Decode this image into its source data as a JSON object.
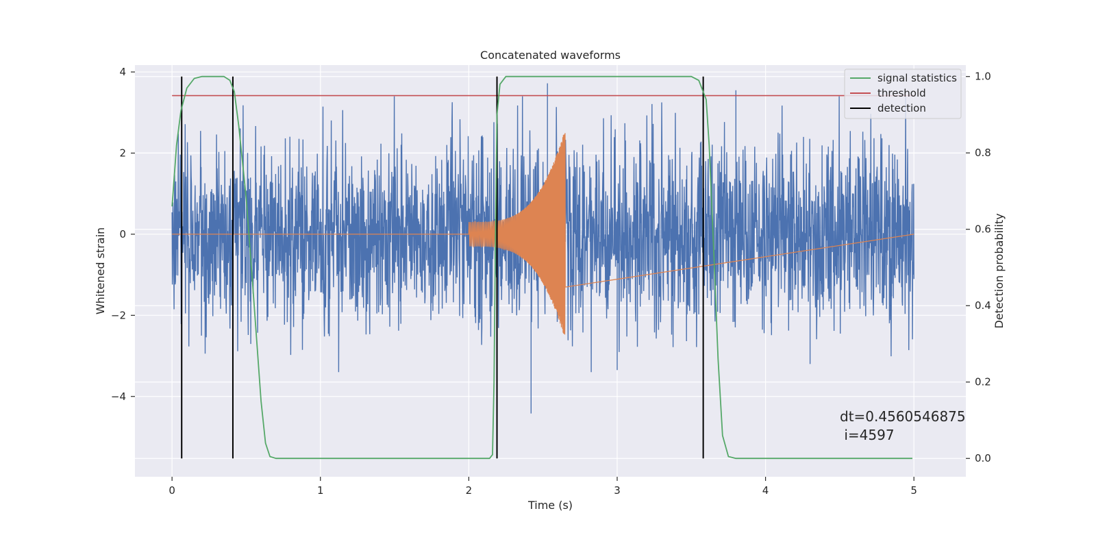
{
  "chart_data": {
    "type": "line",
    "title": "Concatenated waveforms",
    "xlabel": "Time (s)",
    "ylabel": "Whitened strain",
    "ylabel_right": "Detection probability",
    "xlim": [
      -0.25,
      5.35
    ],
    "ylim": [
      -5.98,
      4.17
    ],
    "ylim_right": [
      -0.048,
      1.03
    ],
    "xticks": [
      0,
      1,
      2,
      3,
      4,
      5
    ],
    "yticks": [
      4,
      2,
      0,
      -2,
      -4
    ],
    "ytick_labels": [
      "4",
      "2",
      "0",
      "−2",
      "−4"
    ],
    "yticks_right": [
      1.0,
      0.8,
      0.6,
      0.4,
      0.2,
      0.0
    ],
    "ytick_labels_right": [
      "1.0",
      "0.8",
      "0.6",
      "0.4",
      "0.2",
      "0.0"
    ],
    "grid": true,
    "legend_position": "top-right",
    "colors": {
      "background": "#eaeaf2",
      "grid": "#ffffff",
      "strain": "#4c72b0",
      "injection": "#dd8452",
      "signal_statistics": "#55a868",
      "threshold": "#c44e52",
      "detection": "#000000"
    },
    "series": [
      {
        "name": "",
        "axis": "left",
        "description_color": "strain",
        "x_range": [
          0,
          5
        ],
        "envelope_typical": 1.2,
        "extreme_peaks": [
          [
            2.53,
            3.72
          ],
          [
            3.8,
            3.55
          ],
          [
            2.42,
            -4.42
          ],
          [
            3.0,
            -3.35
          ],
          [
            4.3,
            -3.2
          ]
        ]
      },
      {
        "name": "",
        "axis": "left",
        "description_color": "injection",
        "x_range": [
          2.0,
          2.65
        ],
        "amplitude_start": 0.3,
        "amplitude_peak": 2.6
      },
      {
        "name": "signal statistics",
        "axis": "right",
        "points": [
          [
            0.0,
            0.66
          ],
          [
            0.03,
            0.82
          ],
          [
            0.06,
            0.91
          ],
          [
            0.1,
            0.97
          ],
          [
            0.15,
            0.995
          ],
          [
            0.2,
            1.0
          ],
          [
            0.35,
            1.0
          ],
          [
            0.39,
            0.99
          ],
          [
            0.42,
            0.96
          ],
          [
            0.45,
            0.87
          ],
          [
            0.5,
            0.68
          ],
          [
            0.55,
            0.42
          ],
          [
            0.6,
            0.15
          ],
          [
            0.63,
            0.04
          ],
          [
            0.66,
            0.005
          ],
          [
            0.7,
            0.0
          ],
          [
            2.14,
            0.0
          ],
          [
            2.16,
            0.01
          ],
          [
            2.17,
            0.2
          ],
          [
            2.18,
            0.6
          ],
          [
            2.19,
            0.9
          ],
          [
            2.21,
            0.98
          ],
          [
            2.25,
            1.0
          ],
          [
            3.5,
            1.0
          ],
          [
            3.55,
            0.99
          ],
          [
            3.6,
            0.94
          ],
          [
            3.62,
            0.82
          ],
          [
            3.65,
            0.55
          ],
          [
            3.68,
            0.26
          ],
          [
            3.71,
            0.06
          ],
          [
            3.75,
            0.005
          ],
          [
            3.8,
            0.0
          ],
          [
            4.99,
            0.0
          ]
        ]
      },
      {
        "name": "threshold",
        "axis": "right",
        "value": 0.95,
        "x_range": [
          0,
          5
        ]
      },
      {
        "name": "detection",
        "axis": "right",
        "x_positions": [
          0.065,
          0.41,
          2.19,
          3.58
        ],
        "range": [
          0,
          1
        ]
      }
    ],
    "annotation": {
      "line1": "dt=0.4560546875",
      "line2": " i=4597"
    }
  }
}
